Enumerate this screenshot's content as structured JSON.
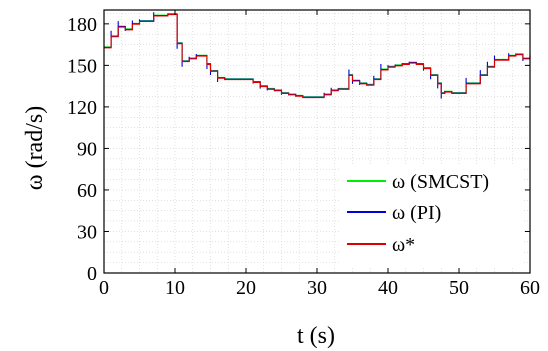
{
  "chart_data": {
    "type": "line",
    "xlabel": "t (s)",
    "ylabel": "ω (rad/s)",
    "xlim": [
      0,
      60
    ],
    "ylim": [
      0,
      190
    ],
    "xticks": [
      "0",
      "10",
      "20",
      "30",
      "40",
      "50",
      "60"
    ],
    "yticks": [
      "0",
      "30",
      "60",
      "90",
      "120",
      "150",
      "180"
    ],
    "grid": true,
    "legend_position": "bottom-right",
    "reference": [
      [
        0,
        163
      ],
      [
        1,
        171
      ],
      [
        2,
        178
      ],
      [
        3,
        176
      ],
      [
        4,
        180
      ],
      [
        5,
        182
      ],
      [
        6,
        182
      ],
      [
        7,
        186
      ],
      [
        8,
        186
      ],
      [
        9,
        187
      ],
      [
        10,
        187
      ],
      [
        10.3,
        166
      ],
      [
        11,
        153
      ],
      [
        12,
        155
      ],
      [
        13,
        157
      ],
      [
        14,
        157
      ],
      [
        14.5,
        151
      ],
      [
        15,
        146
      ],
      [
        16,
        141
      ],
      [
        17,
        140
      ],
      [
        18,
        140
      ],
      [
        19,
        140
      ],
      [
        20,
        140
      ],
      [
        21,
        138
      ],
      [
        22,
        135
      ],
      [
        23,
        133
      ],
      [
        24,
        132
      ],
      [
        25,
        130
      ],
      [
        26,
        129
      ],
      [
        27,
        128
      ],
      [
        28,
        127
      ],
      [
        29,
        127
      ],
      [
        30,
        127
      ],
      [
        31,
        129
      ],
      [
        32,
        132
      ],
      [
        33,
        133
      ],
      [
        34,
        133
      ],
      [
        34.5,
        143
      ],
      [
        35,
        139
      ],
      [
        36,
        137
      ],
      [
        37,
        136
      ],
      [
        38,
        140
      ],
      [
        39,
        147
      ],
      [
        40,
        149
      ],
      [
        41,
        150
      ],
      [
        42,
        151
      ],
      [
        43,
        152
      ],
      [
        44,
        151
      ],
      [
        45,
        148
      ],
      [
        46,
        143
      ],
      [
        47,
        137
      ],
      [
        47.5,
        130
      ],
      [
        48,
        131
      ],
      [
        49,
        130
      ],
      [
        50,
        130
      ],
      [
        51,
        137
      ],
      [
        52,
        137
      ],
      [
        53,
        143
      ],
      [
        54,
        149
      ],
      [
        55,
        154
      ],
      [
        56,
        154
      ],
      [
        57,
        157
      ],
      [
        58,
        158
      ],
      [
        59,
        155
      ],
      [
        60,
        157
      ]
    ],
    "series": [
      {
        "name": "ω (SMCST)",
        "color": "#00ee00",
        "offset": 0.3,
        "spike": 0
      },
      {
        "name": "ω (PI)",
        "color": "#0000dd",
        "offset": 0.0,
        "spike": 1
      },
      {
        "name": "ω*",
        "color": "#dd0000",
        "offset": -0.3,
        "spike": 0
      }
    ]
  }
}
